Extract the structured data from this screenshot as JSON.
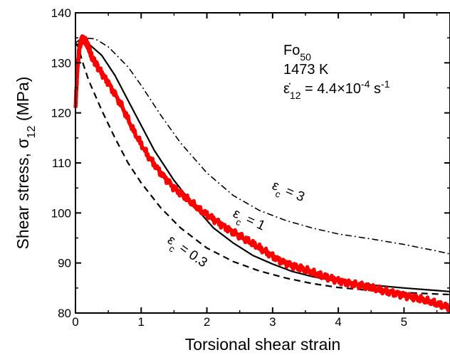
{
  "chart_data": {
    "type": "line",
    "xlabel": "Torsional shear strain",
    "ylabel": "Shear stress, σ",
    "ylabel_sub": "12",
    "ylabel_unit": " (MPa)",
    "xlim": [
      0,
      5.7
    ],
    "ylim": [
      80,
      140
    ],
    "xticks": [
      0,
      1,
      2,
      3,
      4,
      5
    ],
    "yticks": [
      80,
      90,
      100,
      110,
      120,
      130,
      140
    ],
    "grid": false,
    "annotation": {
      "line1_main": "Fo",
      "line1_sub": "50",
      "line2": "1473 K",
      "line3_symbol": "ε̇",
      "line3_sub": "12",
      "line3_eq": " = 4.4×10",
      "line3_exp": "-4",
      "line3_unit": " s",
      "line3_exp2": "-1"
    },
    "series": [
      {
        "label_prefix": "ε",
        "label_sub": "c",
        "label_value": " = 3",
        "color": "#000000",
        "style": "dashdot",
        "x": [
          0,
          0.1,
          0.3,
          0.5,
          0.8,
          1.0,
          1.3,
          1.6,
          2.0,
          2.4,
          2.8,
          3.2,
          3.6,
          4.0,
          4.5,
          5.0,
          5.5,
          5.7
        ],
        "y": [
          134,
          135,
          134.8,
          133.2,
          129.2,
          125.5,
          119.5,
          114,
          108,
          103.5,
          100.5,
          98.5,
          97,
          95.8,
          94.8,
          93.7,
          92.4,
          91.8
        ]
      },
      {
        "label_prefix": "ε",
        "label_sub": "c",
        "label_value": " = 1",
        "color": "#000000",
        "style": "solid",
        "x": [
          0,
          0.1,
          0.2,
          0.4,
          0.6,
          0.8,
          1.0,
          1.2,
          1.5,
          1.8,
          2.1,
          2.4,
          2.7,
          3.0,
          3.3,
          3.6,
          4.0,
          4.5,
          5.0,
          5.5,
          5.7
        ],
        "y": [
          133.5,
          134,
          133.8,
          131.5,
          127.5,
          122.5,
          117.5,
          112.5,
          106.5,
          101.5,
          97,
          94,
          91.5,
          89.8,
          88.3,
          87.3,
          86.3,
          85.6,
          85,
          84.5,
          84.3
        ]
      },
      {
        "label_prefix": "ε",
        "label_sub": "c",
        "label_value": " = 0.3",
        "color": "#000000",
        "style": "dashed",
        "x": [
          0,
          0.05,
          0.1,
          0.2,
          0.4,
          0.6,
          0.8,
          1.0,
          1.3,
          1.6,
          2.0,
          2.4,
          2.8,
          3.2,
          3.6,
          4.0,
          4.5,
          5.0,
          5.5,
          5.7
        ],
        "y": [
          134,
          133,
          130.5,
          126.5,
          120.5,
          115,
          110,
          106,
          101,
          97,
          93,
          90.3,
          88.4,
          87,
          85.9,
          85.1,
          84.5,
          84.1,
          83.8,
          83.7
        ]
      },
      {
        "color": "#ff0000",
        "style": "solid-noisy",
        "x": [
          0,
          0.03,
          0.06,
          0.1,
          0.15,
          0.2,
          0.25,
          0.35,
          0.5,
          0.7,
          0.9,
          1.1,
          1.3,
          1.5,
          1.7,
          1.9,
          2.1,
          2.3,
          2.5,
          2.7,
          2.9,
          3.1,
          3.3,
          3.5,
          3.7,
          3.9,
          4.1,
          4.3,
          4.5,
          4.7,
          4.9,
          5.1,
          5.3,
          5.5,
          5.7
        ],
        "y": [
          121,
          129,
          133,
          135,
          134.5,
          133,
          131,
          129,
          126,
          121.5,
          116,
          111.5,
          108,
          105,
          102.8,
          100.5,
          98.8,
          97,
          95.4,
          93.8,
          92.2,
          90.6,
          89.5,
          88.6,
          87.6,
          86.9,
          86.2,
          85.6,
          85,
          84.4,
          83.9,
          83.3,
          82.6,
          81.8,
          81.1
        ]
      }
    ]
  }
}
